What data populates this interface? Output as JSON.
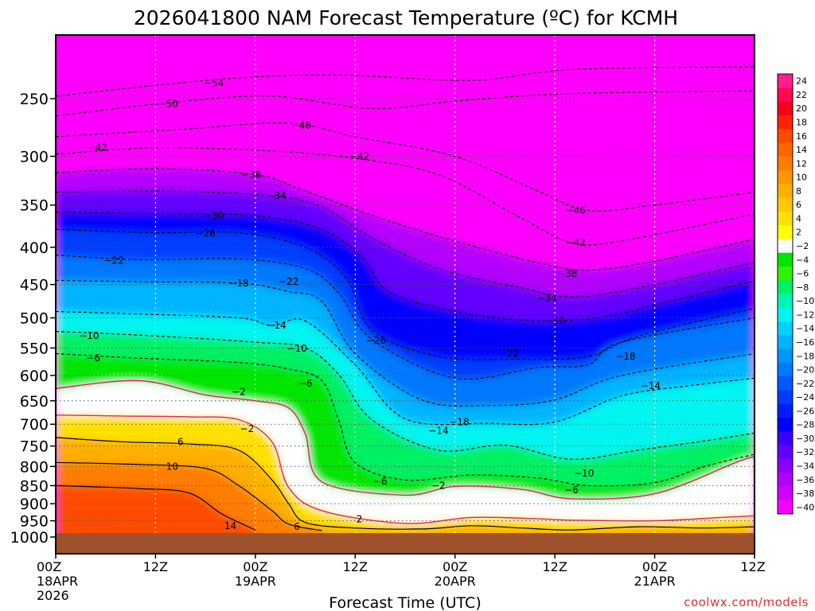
{
  "chart_data": {
    "type": "heatmap",
    "title": "2026041800 NAM Forecast Temperature (ºC) for KCMH",
    "xlabel": "Forecast Time (UTC)",
    "ylabel": "",
    "units": "ºC",
    "credit": "coolwx.com/models",
    "y_axis": {
      "ticks": [
        250,
        300,
        350,
        400,
        450,
        500,
        550,
        600,
        650,
        700,
        750,
        800,
        850,
        900,
        950,
        1000
      ],
      "range": [
        200,
        1000
      ],
      "inverted": true
    },
    "x_axis": {
      "range_hours": [
        0,
        84
      ],
      "ticks": [
        {
          "hour": 0,
          "lines": [
            "00Z",
            "18APR",
            "2026"
          ]
        },
        {
          "hour": 12,
          "lines": [
            "12Z"
          ]
        },
        {
          "hour": 24,
          "lines": [
            "00Z",
            "19APR"
          ]
        },
        {
          "hour": 36,
          "lines": [
            "12Z"
          ]
        },
        {
          "hour": 48,
          "lines": [
            "00Z",
            "20APR"
          ]
        },
        {
          "hour": 60,
          "lines": [
            "12Z"
          ]
        },
        {
          "hour": 72,
          "lines": [
            "00Z",
            "21APR"
          ]
        },
        {
          "hour": 84,
          "lines": [
            "12Z"
          ]
        }
      ]
    },
    "colorbar": {
      "levels": [
        24,
        22,
        20,
        18,
        16,
        14,
        12,
        10,
        8,
        6,
        4,
        2,
        -2,
        -4,
        -6,
        -8,
        -10,
        -12,
        -14,
        -16,
        -18,
        -20,
        -22,
        -24,
        -26,
        -28,
        -30,
        -32,
        -34,
        -36,
        -38,
        -40
      ],
      "tick_labels": [
        "24",
        "22",
        "20",
        "18",
        "16",
        "14",
        "12",
        "10",
        "8",
        "6",
        "4",
        "2",
        "−2",
        "−4",
        "−6",
        "−8",
        "−10",
        "−12",
        "−14",
        "−16",
        "−18",
        "−20",
        "−22",
        "−24",
        "−26",
        "−28",
        "−30",
        "−32",
        "−34",
        "−36",
        "−38",
        "−40"
      ],
      "colors": [
        "#ff1e8c",
        "#ff0a50",
        "#f5001e",
        "#ff2300",
        "#ff4b00",
        "#ff6400",
        "#ff7d00",
        "#ff9600",
        "#ffaf00",
        "#ffc800",
        "#ffe100",
        "#ffff00",
        "#ffffff",
        "#00e600",
        "#32f000",
        "#00f064",
        "#00f5b4",
        "#00f5f0",
        "#00d2ff",
        "#00b4ff",
        "#0096ff",
        "#0078ff",
        "#005aff",
        "#003cff",
        "#001eff",
        "#0000ff",
        "#3c00ff",
        "#6400ff",
        "#8c00ff",
        "#b400ff",
        "#d200ff",
        "#ff00ff"
      ]
    },
    "grid": true,
    "ground_color": "#a0522d",
    "freezing_line_color": "#e0206e",
    "isotherms": [
      {
        "value": -54,
        "points": [
          [
            0,
            248
          ],
          [
            20,
            235
          ],
          [
            34,
            232
          ],
          [
            50,
            236
          ],
          [
            62,
            228
          ],
          [
            84,
            226
          ]
        ]
      },
      {
        "value": -50,
        "points": [
          [
            0,
            264
          ],
          [
            14,
            253
          ],
          [
            26,
            248
          ],
          [
            38,
            258
          ],
          [
            48,
            252
          ],
          [
            62,
            246
          ],
          [
            84,
            244
          ]
        ]
      },
      {
        "value": -46,
        "points": [
          [
            0,
            282
          ],
          [
            16,
            275
          ],
          [
            28,
            270
          ],
          [
            36,
            282
          ],
          [
            48,
            300
          ],
          [
            58,
            335
          ],
          [
            64,
            356
          ],
          [
            72,
            350
          ],
          [
            84,
            336
          ]
        ]
      },
      {
        "value": -42,
        "points": [
          [
            0,
            298
          ],
          [
            12,
            292
          ],
          [
            26,
            295
          ],
          [
            36,
            302
          ],
          [
            46,
            318
          ],
          [
            56,
            365
          ],
          [
            62,
            394
          ],
          [
            68,
            392
          ],
          [
            84,
            360
          ]
        ]
      },
      {
        "value": -38,
        "points": [
          [
            0,
            316
          ],
          [
            12,
            312
          ],
          [
            24,
            318
          ],
          [
            30,
            335
          ],
          [
            40,
            368
          ],
          [
            50,
            398
          ],
          [
            58,
            420
          ],
          [
            64,
            430
          ],
          [
            72,
            418
          ],
          [
            84,
            390
          ]
        ]
      },
      {
        "value": -34,
        "points": [
          [
            0,
            336
          ],
          [
            14,
            335
          ],
          [
            26,
            340
          ],
          [
            32,
            352
          ],
          [
            38,
            388
          ],
          [
            46,
            428
          ],
          [
            56,
            455
          ],
          [
            62,
            468
          ],
          [
            70,
            455
          ],
          [
            84,
            420
          ]
        ]
      },
      {
        "value": -30,
        "points": [
          [
            0,
            358
          ],
          [
            14,
            360
          ],
          [
            24,
            362
          ],
          [
            32,
            378
          ],
          [
            37,
            415
          ],
          [
            40,
            460
          ],
          [
            48,
            490
          ],
          [
            58,
            505
          ],
          [
            66,
            498
          ],
          [
            72,
            480
          ],
          [
            84,
            445
          ]
        ]
      },
      {
        "value": -26,
        "points": [
          [
            0,
            378
          ],
          [
            12,
            382
          ],
          [
            22,
            382
          ],
          [
            30,
            400
          ],
          [
            35,
            442
          ],
          [
            38,
            520
          ],
          [
            46,
            565
          ],
          [
            56,
            570
          ],
          [
            64,
            565
          ],
          [
            70,
            530
          ],
          [
            84,
            485
          ]
        ]
      },
      {
        "value": -22,
        "points": [
          [
            0,
            410
          ],
          [
            10,
            416
          ],
          [
            22,
            415
          ],
          [
            30,
            428
          ],
          [
            34,
            462
          ],
          [
            38,
            535
          ],
          [
            48,
            605
          ],
          [
            58,
            585
          ],
          [
            64,
            580
          ],
          [
            68,
            540
          ],
          [
            84,
            500
          ]
        ]
      },
      {
        "value": -18,
        "points": [
          [
            0,
            444
          ],
          [
            10,
            446
          ],
          [
            22,
            448
          ],
          [
            28,
            460
          ],
          [
            32,
            475
          ],
          [
            36,
            560
          ],
          [
            44,
            648
          ],
          [
            52,
            660
          ],
          [
            60,
            648
          ],
          [
            68,
            600
          ],
          [
            84,
            560
          ]
        ]
      },
      {
        "value": -14,
        "points": [
          [
            0,
            490
          ],
          [
            10,
            494
          ],
          [
            22,
            500
          ],
          [
            26,
            512
          ],
          [
            30,
            505
          ],
          [
            36,
            580
          ],
          [
            42,
            688
          ],
          [
            52,
            698
          ],
          [
            60,
            695
          ],
          [
            68,
            640
          ],
          [
            76,
            620
          ],
          [
            84,
            605
          ]
        ]
      },
      {
        "value": -10,
        "points": [
          [
            0,
            522
          ],
          [
            10,
            528
          ],
          [
            24,
            540
          ],
          [
            30,
            550
          ],
          [
            34,
            598
          ],
          [
            38,
            690
          ],
          [
            46,
            760
          ],
          [
            54,
            748
          ],
          [
            62,
            782
          ],
          [
            70,
            760
          ],
          [
            78,
            738
          ],
          [
            84,
            720
          ]
        ]
      },
      {
        "value": -6,
        "points": [
          [
            0,
            560
          ],
          [
            10,
            568
          ],
          [
            22,
            576
          ],
          [
            28,
            588
          ],
          [
            32,
            610
          ],
          [
            34,
            690
          ],
          [
            36,
            790
          ],
          [
            42,
            835
          ],
          [
            50,
            822
          ],
          [
            58,
            830
          ],
          [
            64,
            850
          ],
          [
            72,
            842
          ],
          [
            78,
            800
          ],
          [
            84,
            770
          ]
        ]
      },
      {
        "value": -2,
        "points": [
          [
            0,
            625
          ],
          [
            10,
            610
          ],
          [
            18,
            638
          ],
          [
            24,
            650
          ],
          [
            28,
            665
          ],
          [
            30,
            722
          ],
          [
            32,
            840
          ],
          [
            42,
            876
          ],
          [
            48,
            852
          ],
          [
            56,
            860
          ],
          [
            62,
            886
          ],
          [
            72,
            872
          ],
          [
            82,
            788
          ],
          [
            84,
            776
          ]
        ]
      },
      {
        "value": 2,
        "points": [
          [
            0,
            680
          ],
          [
            8,
            682
          ],
          [
            16,
            684
          ],
          [
            22,
            690
          ],
          [
            26,
            740
          ],
          [
            28,
            855
          ],
          [
            32,
            920
          ],
          [
            42,
            958
          ],
          [
            50,
            940
          ],
          [
            58,
            944
          ],
          [
            62,
            948
          ],
          [
            72,
            950
          ],
          [
            80,
            940
          ],
          [
            84,
            935
          ]
        ]
      },
      {
        "value": 6,
        "points": [
          [
            0,
            730
          ],
          [
            8,
            740
          ],
          [
            16,
            745
          ],
          [
            22,
            760
          ],
          [
            26,
            835
          ],
          [
            28,
            900
          ],
          [
            30,
            955
          ],
          [
            36,
            972
          ],
          [
            44,
            975
          ],
          [
            50,
            965
          ],
          [
            56,
            972
          ],
          [
            62,
            978
          ],
          [
            70,
            968
          ],
          [
            78,
            972
          ],
          [
            84,
            968
          ]
        ]
      },
      {
        "value": 10,
        "points": [
          [
            0,
            790
          ],
          [
            10,
            795
          ],
          [
            18,
            805
          ],
          [
            22,
            850
          ],
          [
            26,
            920
          ],
          [
            28,
            960
          ],
          [
            32,
            980
          ]
        ]
      },
      {
        "value": 14,
        "points": [
          [
            0,
            850
          ],
          [
            10,
            858
          ],
          [
            16,
            870
          ],
          [
            20,
            930
          ],
          [
            24,
            978
          ]
        ]
      }
    ],
    "contour_labels": [
      {
        "text": "−54",
        "hour": 19,
        "p": 238
      },
      {
        "text": "−50",
        "hour": 13.5,
        "p": 254
      },
      {
        "text": "−46",
        "hour": 29.5,
        "p": 272
      },
      {
        "text": "−42",
        "hour": 5,
        "p": 292
      },
      {
        "text": "−42",
        "hour": 36.5,
        "p": 300
      },
      {
        "text": "−38",
        "hour": 23.5,
        "p": 318
      },
      {
        "text": "−34",
        "hour": 26.5,
        "p": 340
      },
      {
        "text": "−30",
        "hour": 19,
        "p": 362
      },
      {
        "text": "−26",
        "hour": 18,
        "p": 383
      },
      {
        "text": "−22",
        "hour": 7,
        "p": 417
      },
      {
        "text": "−18",
        "hour": 22,
        "p": 448
      },
      {
        "text": "−22",
        "hour": 28,
        "p": 446
      },
      {
        "text": "−14",
        "hour": 26.5,
        "p": 512
      },
      {
        "text": "−10",
        "hour": 4,
        "p": 529
      },
      {
        "text": "−10",
        "hour": 29,
        "p": 551
      },
      {
        "text": "−6",
        "hour": 4.5,
        "p": 568
      },
      {
        "text": "−26",
        "hour": 38.5,
        "p": 537
      },
      {
        "text": "−22",
        "hour": 54.5,
        "p": 560
      },
      {
        "text": "−18",
        "hour": 68.5,
        "p": 565
      },
      {
        "text": "−14",
        "hour": 71.5,
        "p": 620
      },
      {
        "text": "−6",
        "hour": 30,
        "p": 615
      },
      {
        "text": "−2",
        "hour": 22,
        "p": 632
      },
      {
        "text": "−2",
        "hour": 23,
        "p": 710
      },
      {
        "text": "−18",
        "hour": 48.5,
        "p": 695
      },
      {
        "text": "−14",
        "hour": 46,
        "p": 715
      },
      {
        "text": "−46",
        "hour": 62.5,
        "p": 356
      },
      {
        "text": "−42",
        "hour": 62.5,
        "p": 394
      },
      {
        "text": "−38",
        "hour": 61.5,
        "p": 435
      },
      {
        "text": "−34",
        "hour": 59,
        "p": 470
      },
      {
        "text": "−30",
        "hour": 60,
        "p": 505
      },
      {
        "text": "−10",
        "hour": 63.5,
        "p": 818
      },
      {
        "text": "−6",
        "hour": 62,
        "p": 862
      },
      {
        "text": "−6",
        "hour": 39,
        "p": 838
      },
      {
        "text": "−2",
        "hour": 46,
        "p": 850
      },
      {
        "text": "6",
        "hour": 15,
        "p": 740
      },
      {
        "text": "10",
        "hour": 14,
        "p": 800
      },
      {
        "text": "14",
        "hour": 21,
        "p": 965
      },
      {
        "text": "6",
        "hour": 29,
        "p": 968
      },
      {
        "text": "2",
        "hour": 36.5,
        "p": 945
      }
    ]
  }
}
